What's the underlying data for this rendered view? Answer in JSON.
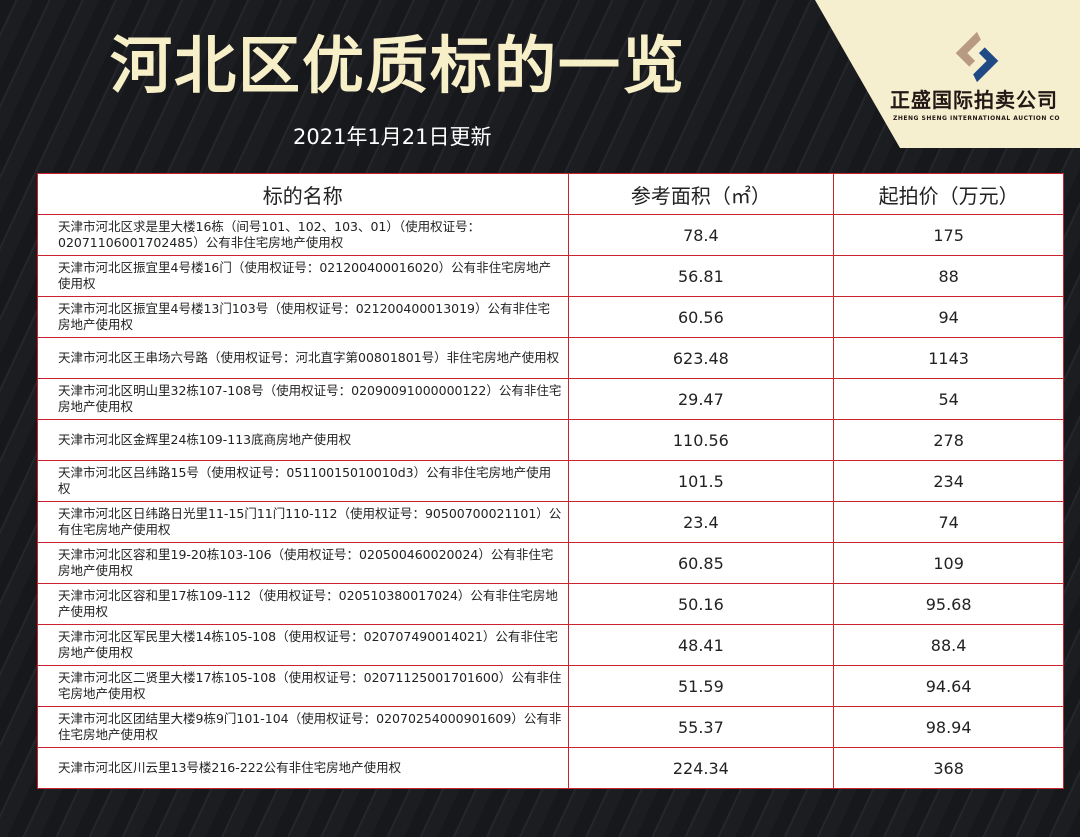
{
  "title": "河北区优质标的一览",
  "subtitle": "2021年1月21日更新",
  "logo": {
    "name_cn": "正盛国际拍卖公司",
    "name_en": "ZHENG SHENG INTERNATIONAL AUCTION CO",
    "colors": {
      "bronze": "#b89a82",
      "blue": "#1f4a86"
    }
  },
  "table": {
    "headers": [
      "标的名称",
      "参考面积（㎡）",
      "起拍价（万元）"
    ],
    "rows": [
      [
        "天津市河北区求是里大楼16栋（间号101、102、103、01）（使用权证号：02071106001702485）公有非住宅房地产使用权",
        "78.4",
        "175"
      ],
      [
        "天津市河北区振宜里4号楼16门（使用权证号：021200400016020）公有非住宅房地产使用权",
        "56.81",
        "88"
      ],
      [
        "天津市河北区振宜里4号楼13门103号（使用权证号：021200400013019）公有非住宅房地产使用权",
        "60.56",
        "94"
      ],
      [
        "天津市河北区王串场六号路（使用权证号：河北直字第00801801号）非住宅房地产使用权",
        "623.48",
        "1143"
      ],
      [
        "天津市河北区明山里32栋107-108号（使用权证号：02090091000000122）公有非住宅房地产使用权",
        "29.47",
        "54"
      ],
      [
        "天津市河北区金辉里24栋109-113底商房地产使用权",
        "110.56",
        "278"
      ],
      [
        "天津市河北区吕纬路15号（使用权证号：05110015010010d3）公有非住宅房地产使用权",
        "101.5",
        "234"
      ],
      [
        "天津市河北区日纬路日光里11-15门11门110-112（使用权证号：90500700021101）公有住宅房地产使用权",
        "23.4",
        "74"
      ],
      [
        "天津市河北区容和里19-20栋103-106（使用权证号：020500460020024）公有非住宅房地产使用权",
        "60.85",
        "109"
      ],
      [
        "天津市河北区容和里17栋109-112（使用权证号：020510380017024）公有非住宅房地产使用权",
        "50.16",
        "95.68"
      ],
      [
        "天津市河北区军民里大楼14栋105-108（使用权证号：020707490014021）公有非住宅房地产使用权",
        "48.41",
        "88.4"
      ],
      [
        "天津市河北区二贤里大楼17栋105-108（使用权证号：02071125001701600）公有非住宅房地产使用权",
        "51.59",
        "94.64"
      ],
      [
        "天津市河北区团结里大楼9栋9门101-104（使用权证号：02070254000901609）公有非住宅房地产使用权",
        "55.37",
        "98.94"
      ],
      [
        "天津市河北区川云里13号楼216-222公有非住宅房地产使用权",
        "224.34",
        "368"
      ]
    ]
  }
}
